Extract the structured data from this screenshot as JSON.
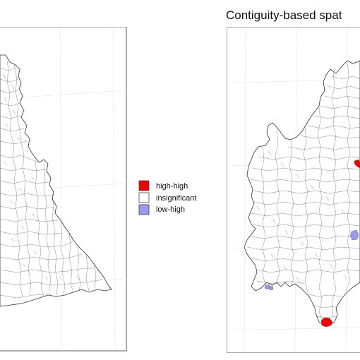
{
  "right_panel": {
    "title": "Contiguity-based spat"
  },
  "legend": {
    "items": [
      {
        "label": "high-high",
        "color": "#ee0000"
      },
      {
        "label": "insignificant",
        "color": "#ffffff"
      },
      {
        "label": "low-high",
        "color": "#9999ee"
      }
    ]
  }
}
